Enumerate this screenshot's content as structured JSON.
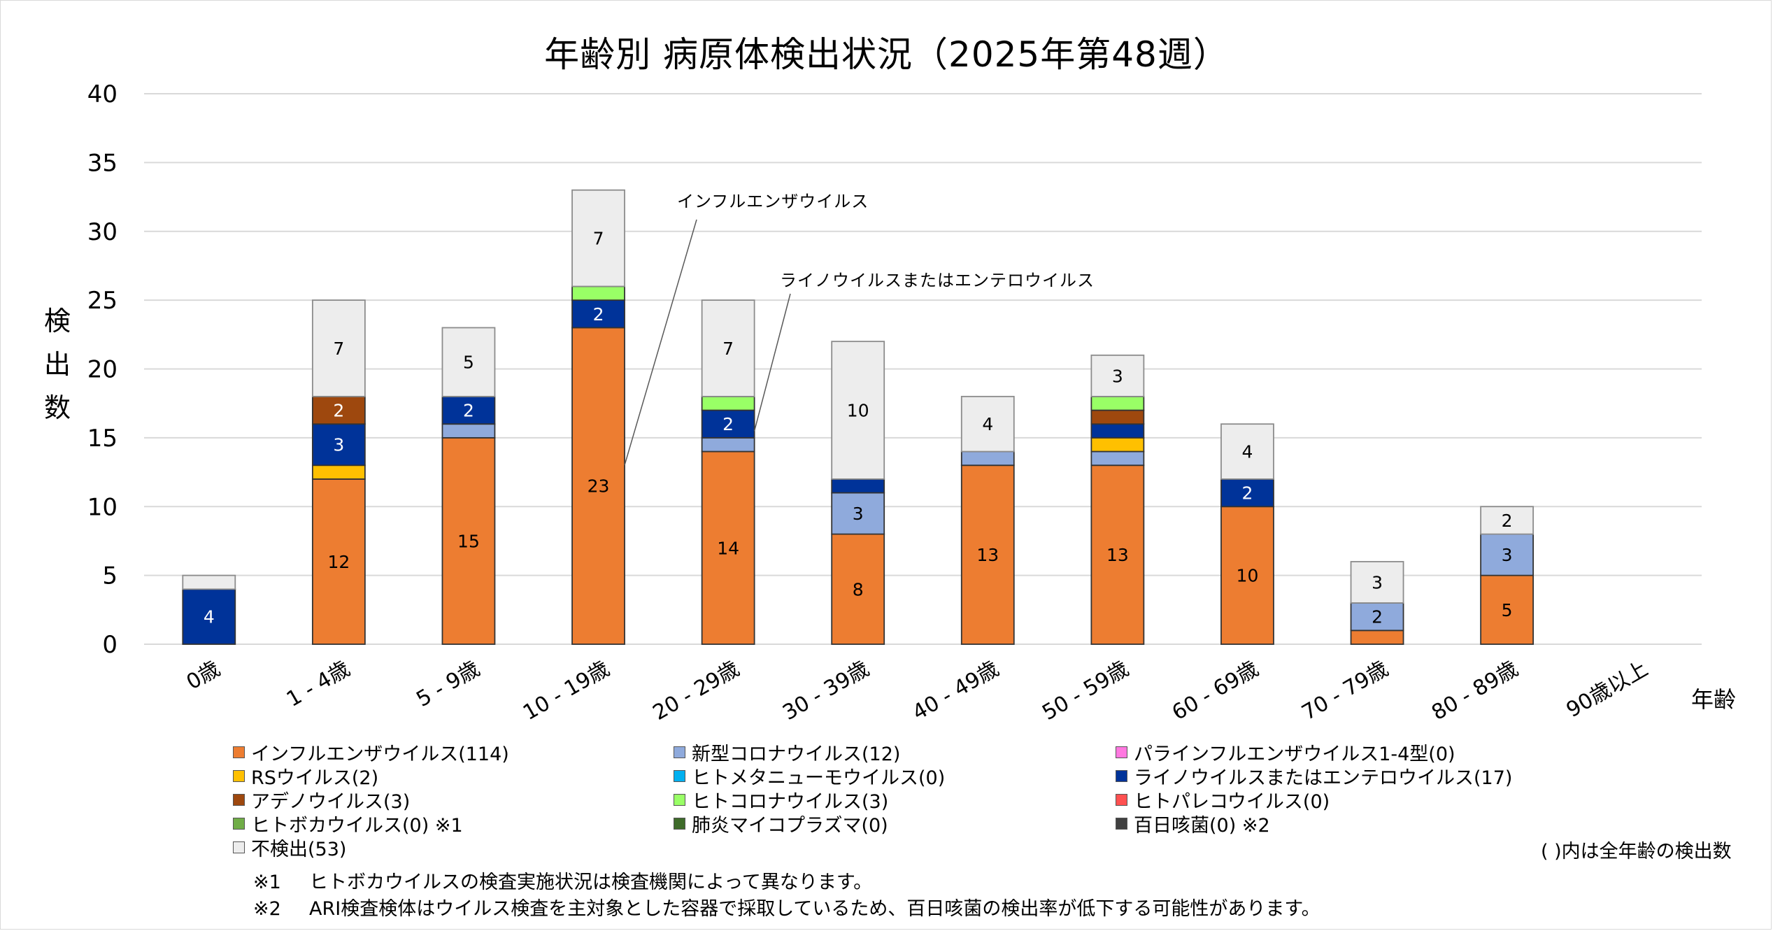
{
  "chart_data": {
    "type": "bar",
    "stacked": true,
    "title": "年齢別 病原体検出状況（2025年第48週）",
    "xlabel": "年齢",
    "ylabel": "検出数",
    "ylim": [
      0,
      40
    ],
    "yticks": [
      0,
      5,
      10,
      15,
      20,
      25,
      30,
      35,
      40
    ],
    "grid": true,
    "legend_position": "bottom",
    "categories": [
      "0歳",
      "1 - 4歳",
      "5 - 9歳",
      "10 - 19歳",
      "20 - 29歳",
      "30 - 39歳",
      "40 - 49歳",
      "50 - 59歳",
      "60 - 69歳",
      "70 - 79歳",
      "80 - 89歳",
      "90歳以上"
    ],
    "series": [
      {
        "name": "インフルエンザウイルス",
        "legend": "インフルエンザウイルス(114)",
        "color": "#ED7D31",
        "label_color": "#000000",
        "values": [
          0,
          12,
          15,
          23,
          14,
          8,
          13,
          13,
          10,
          1,
          5,
          0
        ]
      },
      {
        "name": "新型コロナウイルス",
        "legend": "新型コロナウイルス(12)",
        "color": "#8FAADC",
        "label_color": "#000000",
        "values": [
          0,
          0,
          1,
          0,
          1,
          3,
          1,
          1,
          0,
          2,
          3,
          0
        ]
      },
      {
        "name": "パラインフルエンザウイルス1-4型",
        "legend": "パラインフルエンザウイルス1-4型(0)",
        "color": "#FF78E0",
        "label_color": "#000000",
        "values": [
          0,
          0,
          0,
          0,
          0,
          0,
          0,
          0,
          0,
          0,
          0,
          0
        ]
      },
      {
        "name": "RSウイルス",
        "legend": "RSウイルス(2)",
        "color": "#FFC000",
        "label_color": "#000000",
        "values": [
          0,
          1,
          0,
          0,
          0,
          0,
          0,
          1,
          0,
          0,
          0,
          0
        ]
      },
      {
        "name": "ヒトメタニューモウイルス",
        "legend": "ヒトメタニューモウイルス(0)",
        "color": "#00B0F0",
        "label_color": "#000000",
        "values": [
          0,
          0,
          0,
          0,
          0,
          0,
          0,
          0,
          0,
          0,
          0,
          0
        ]
      },
      {
        "name": "ライノウイルスまたはエンテロウイルス",
        "legend": "ライノウイルスまたはエンテロウイルス(17)",
        "color": "#003399",
        "label_color": "#FFFFFF",
        "values": [
          4,
          3,
          2,
          2,
          2,
          1,
          0,
          1,
          2,
          0,
          0,
          0
        ]
      },
      {
        "name": "アデノウイルス",
        "legend": "アデノウイルス(3)",
        "color": "#9E480E",
        "label_color": "#FFFFFF",
        "values": [
          0,
          2,
          0,
          0,
          0,
          0,
          0,
          1,
          0,
          0,
          0,
          0
        ]
      },
      {
        "name": "ヒトコロナウイルス",
        "legend": "ヒトコロナウイルス(3)",
        "color": "#99FF66",
        "label_color": "#000000",
        "values": [
          0,
          0,
          0,
          1,
          1,
          0,
          0,
          1,
          0,
          0,
          0,
          0
        ]
      },
      {
        "name": "ヒトパレコウイルス",
        "legend": "ヒトパレコウイルス(0)",
        "color": "#FF5050",
        "label_color": "#000000",
        "values": [
          0,
          0,
          0,
          0,
          0,
          0,
          0,
          0,
          0,
          0,
          0,
          0
        ]
      },
      {
        "name": "ヒトボカウイルス",
        "legend": "ヒトボカウイルス(0) ※1",
        "color": "#70AD47",
        "label_color": "#000000",
        "values": [
          0,
          0,
          0,
          0,
          0,
          0,
          0,
          0,
          0,
          0,
          0,
          0
        ]
      },
      {
        "name": "肺炎マイコプラズマ",
        "legend": "肺炎マイコプラズマ(0)",
        "color": "#3E6B2A",
        "label_color": "#FFFFFF",
        "values": [
          0,
          0,
          0,
          0,
          0,
          0,
          0,
          0,
          0,
          0,
          0,
          0
        ]
      },
      {
        "name": "百日咳菌",
        "legend": "百日咳菌(0) ※2",
        "color": "#404040",
        "label_color": "#FFFFFF",
        "values": [
          0,
          0,
          0,
          0,
          0,
          0,
          0,
          0,
          0,
          0,
          0,
          0
        ]
      },
      {
        "name": "不検出",
        "legend": "不検出(53)",
        "color": "#EDEDED",
        "label_color": "#000000",
        "values": [
          1,
          7,
          5,
          7,
          7,
          10,
          4,
          3,
          4,
          3,
          2,
          0
        ]
      }
    ],
    "data_labels_min_value": 2,
    "annotations": [
      {
        "text": "インフルエンザウイルス",
        "series": "インフルエンザウイルス",
        "category": "10 - 19歳"
      },
      {
        "text": "ライノウイルスまたはエンテロウイルス",
        "series": "ライノウイルスまたはエンテロウイルス",
        "category": "20 - 29歳"
      }
    ]
  },
  "legend_note": "( )内は全年齢の検出数",
  "footnotes": [
    {
      "mark": "※1",
      "text": "ヒトボカウイルスの検査実施状況は検査機関によって異なります。"
    },
    {
      "mark": "※2",
      "text": "ARI検査検体はウイルス検査を主対象とした容器で採取しているため、百日咳菌の検出率が低下する可能性があります。"
    }
  ]
}
